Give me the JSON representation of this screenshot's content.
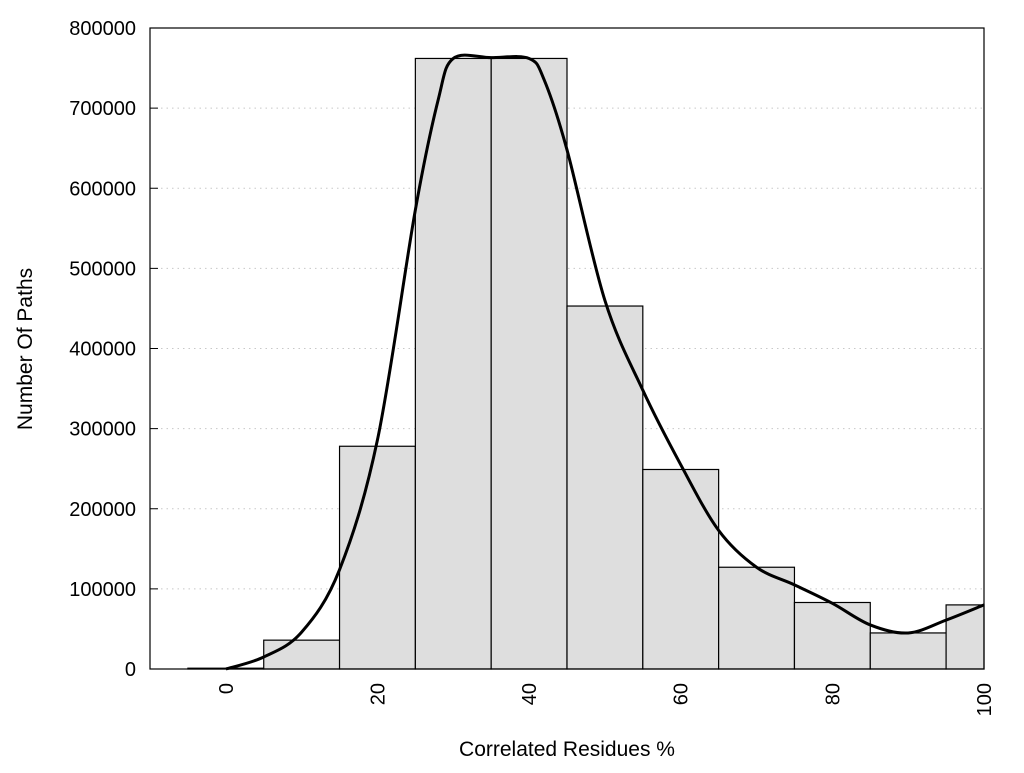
{
  "chart_data": {
    "type": "bar",
    "title": "",
    "xlabel": "Correlated Residues %",
    "ylabel": "Number Of Paths",
    "xlim": [
      -10,
      100
    ],
    "ylim": [
      0,
      800000
    ],
    "grid": "horizontal dotted",
    "bar_width": 10,
    "bar_color": "#dedede",
    "xticks": [
      "0",
      "20",
      "40",
      "60",
      "80",
      "100"
    ],
    "xtick_values": [
      0,
      20,
      40,
      60,
      80,
      100
    ],
    "yticks": [
      "0",
      "100000",
      "200000",
      "300000",
      "400000",
      "500000",
      "600000",
      "700000",
      "800000"
    ],
    "ytick_values": [
      0,
      100000,
      200000,
      300000,
      400000,
      500000,
      600000,
      700000,
      800000
    ],
    "bars": {
      "x": [
        0,
        10,
        20,
        30,
        40,
        50,
        60,
        70,
        80,
        90,
        100
      ],
      "values": [
        1000,
        36000,
        278000,
        762000,
        762000,
        453000,
        249000,
        127000,
        83000,
        45000,
        80000
      ]
    },
    "curve": {
      "x": [
        0,
        5,
        10,
        15,
        20,
        25,
        28,
        30,
        35,
        40,
        42,
        45,
        50,
        55,
        60,
        65,
        70,
        75,
        80,
        85,
        90,
        95,
        100
      ],
      "y": [
        0,
        15000,
        46000,
        124000,
        286000,
        573000,
        710000,
        762000,
        763000,
        762000,
        735000,
        648000,
        460000,
        348000,
        255000,
        173000,
        127000,
        105000,
        82000,
        55000,
        45000,
        61000,
        80000
      ]
    }
  }
}
